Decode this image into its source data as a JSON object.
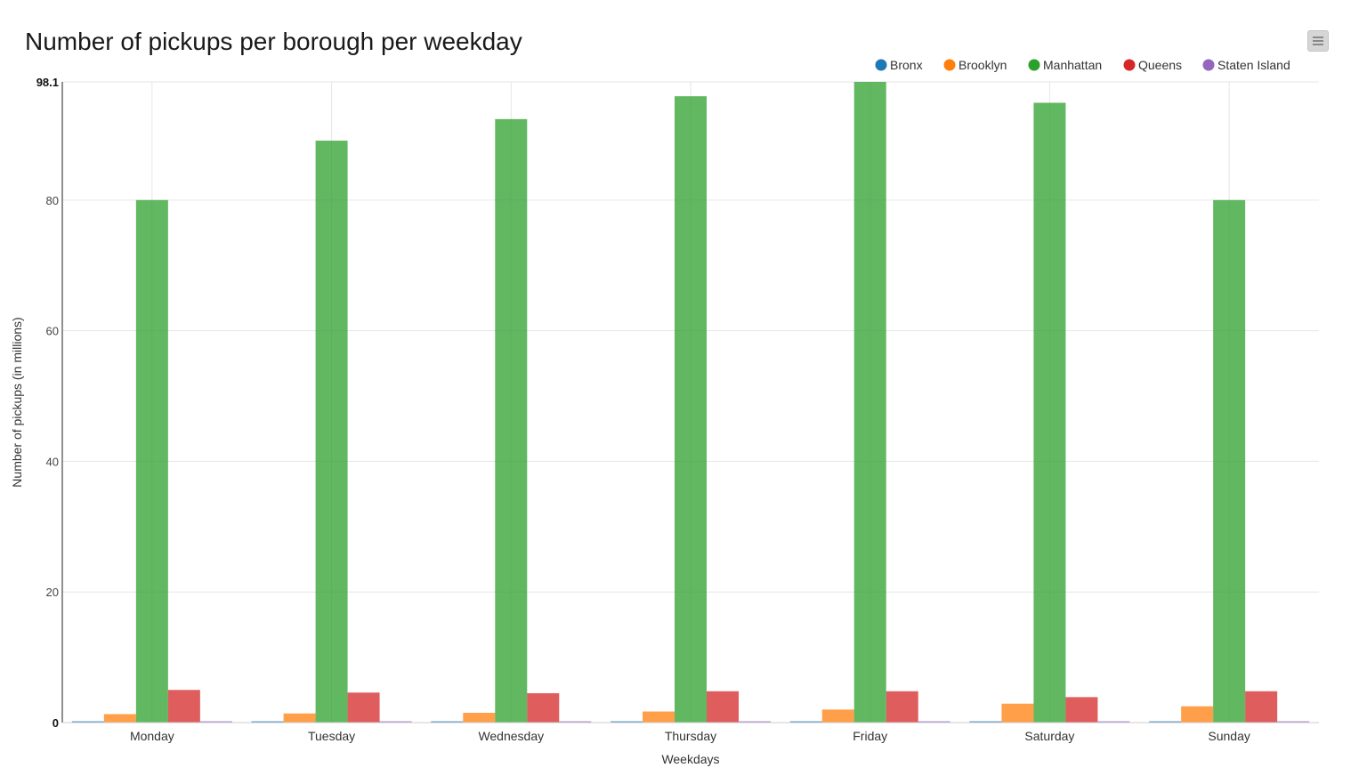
{
  "chart_data": {
    "type": "bar",
    "title": "Number of pickups per borough per weekday",
    "xlabel": "Weekdays",
    "ylabel": "Number of pickups (in millions)",
    "categories": [
      "Monday",
      "Tuesday",
      "Wednesday",
      "Thursday",
      "Friday",
      "Saturday",
      "Sunday"
    ],
    "ylim": [
      0,
      98.1
    ],
    "yticks": [
      0,
      20,
      40,
      60,
      80,
      98.1
    ],
    "ytick_labels": [
      "0",
      "20",
      "40",
      "60",
      "80",
      "98.1"
    ],
    "grid": true,
    "legend_position": "top-right",
    "series": [
      {
        "name": "Bronx",
        "color": "#1f77b4",
        "values": [
          0.15,
          0.15,
          0.15,
          0.15,
          0.15,
          0.15,
          0.15
        ]
      },
      {
        "name": "Brooklyn",
        "color": "#ff7f0e",
        "values": [
          1.3,
          1.4,
          1.5,
          1.7,
          2.0,
          2.9,
          2.5
        ]
      },
      {
        "name": "Manhattan",
        "color": "#2ca02c",
        "values": [
          80.0,
          89.1,
          92.4,
          95.9,
          98.1,
          94.9,
          80.0
        ]
      },
      {
        "name": "Queens",
        "color": "#d62728",
        "values": [
          5.0,
          4.6,
          4.5,
          4.8,
          4.8,
          3.9,
          4.8
        ]
      },
      {
        "name": "Staten Island",
        "color": "#9467bd",
        "values": [
          0.02,
          0.02,
          0.02,
          0.02,
          0.02,
          0.02,
          0.02
        ]
      }
    ]
  }
}
